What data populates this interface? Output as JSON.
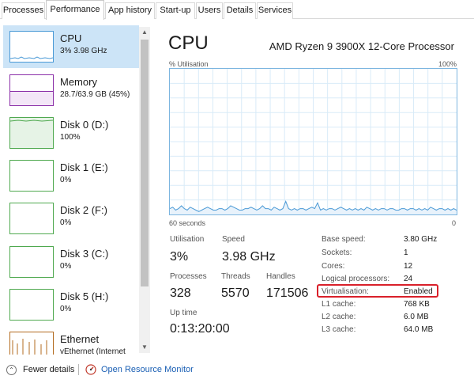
{
  "tabs": [
    "Processes",
    "Performance",
    "App history",
    "Start-up",
    "Users",
    "Details",
    "Services"
  ],
  "active_tab": "Performance",
  "sidebar": {
    "items": [
      {
        "name": "CPU",
        "sub": "3% 3.98 GHz",
        "color": "#4b9ad6",
        "selected": true
      },
      {
        "name": "Memory",
        "sub": "28.7/63.9 GB (45%)",
        "color": "#8b2fa8",
        "selected": false
      },
      {
        "name": "Disk 0 (D:)",
        "sub": "100%",
        "color": "#4fa94f",
        "selected": false
      },
      {
        "name": "Disk 1 (E:)",
        "sub": "0%",
        "color": "#4fa94f",
        "selected": false
      },
      {
        "name": "Disk 2 (F:)",
        "sub": "0%",
        "color": "#4fa94f",
        "selected": false
      },
      {
        "name": "Disk 3 (C:)",
        "sub": "0%",
        "color": "#4fa94f",
        "selected": false
      },
      {
        "name": "Disk 5 (H:)",
        "sub": "0%",
        "color": "#4fa94f",
        "selected": false
      },
      {
        "name": "Ethernet",
        "sub": "vEthernet (Internet",
        "color": "#b36b1f",
        "selected": false
      }
    ]
  },
  "main": {
    "title": "CPU",
    "cpu_model": "AMD Ryzen 9 3900X 12-Core Processor",
    "graph": {
      "y_label": "% Utilisation",
      "y_max_label": "100%",
      "x_label": "60 seconds",
      "x_min_label": "0",
      "line_color": "#4b9ad6",
      "grid_color": "#d9ebf8",
      "values": [
        4,
        5,
        3,
        4,
        6,
        4,
        3,
        5,
        4,
        3,
        2,
        3,
        4,
        5,
        4,
        3,
        3,
        4,
        4,
        3,
        4,
        6,
        5,
        4,
        3,
        3,
        4,
        4,
        5,
        4,
        3,
        4,
        6,
        4,
        4,
        3,
        5,
        4,
        3,
        4,
        9,
        4,
        3,
        4,
        3,
        4,
        4,
        3,
        4,
        5,
        4,
        8,
        3,
        4,
        3,
        4,
        4,
        3,
        4,
        5,
        4,
        3,
        4,
        3,
        4,
        3,
        4,
        3,
        5,
        4,
        3,
        4,
        3,
        4,
        4,
        3,
        4,
        4,
        3,
        3,
        4,
        4,
        3,
        4,
        4,
        3,
        4,
        3,
        4,
        3,
        5,
        4,
        3,
        4,
        4,
        3,
        4,
        3,
        4,
        3
      ]
    },
    "stats": {
      "utilisation_label": "Utilisation",
      "utilisation": "3%",
      "speed_label": "Speed",
      "speed": "3.98 GHz",
      "processes_label": "Processes",
      "processes": "328",
      "threads_label": "Threads",
      "threads": "5570",
      "handles_label": "Handles",
      "handles": "171506",
      "uptime_label": "Up time",
      "uptime": "0:13:20:00"
    },
    "specs": [
      {
        "label": "Base speed:",
        "value": "3.80 GHz"
      },
      {
        "label": "Sockets:",
        "value": "1"
      },
      {
        "label": "Cores:",
        "value": "12"
      },
      {
        "label": "Logical processors:",
        "value": "24"
      },
      {
        "label": "Virtualisation:",
        "value": "Enabled"
      },
      {
        "label": "L1 cache:",
        "value": "768 KB"
      },
      {
        "label": "L2 cache:",
        "value": "6.0 MB"
      },
      {
        "label": "L3 cache:",
        "value": "64.0 MB"
      }
    ]
  },
  "footer": {
    "fewer_details": "Fewer details",
    "resource_monitor": "Open Resource Monitor"
  },
  "colors": {
    "accent": "#4b9ad6",
    "selection": "#cce4f7",
    "highlight_box": "#d9202a",
    "link": "#1a5fb4"
  }
}
